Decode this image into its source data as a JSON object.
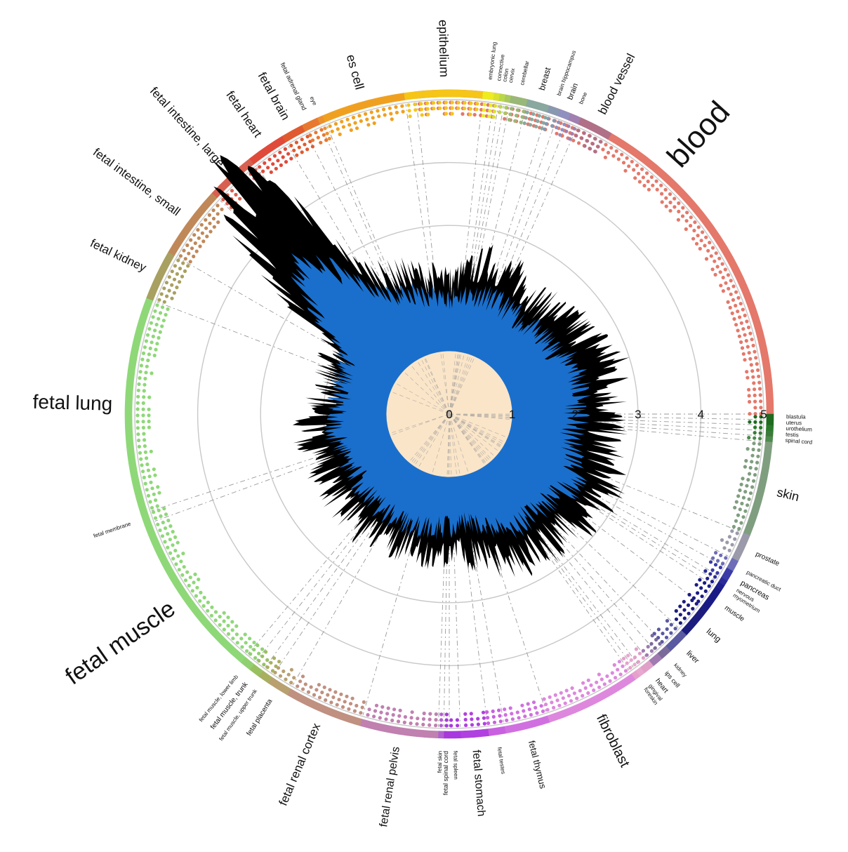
{
  "chart_data": {
    "type": "radial-area",
    "ticks": [
      "0",
      "1",
      "2",
      "3",
      "4",
      "5"
    ],
    "rlim": [
      0,
      5
    ],
    "grid": true,
    "legend": "none",
    "series_colors": {
      "outer": "#000000",
      "inner": "#1a6fcc",
      "core": "#fae5c8"
    },
    "core_value": 1.0,
    "profile_outer": [
      [
        0,
        2.0
      ],
      [
        15,
        2.4
      ],
      [
        40,
        2.2
      ],
      [
        60,
        2.4
      ],
      [
        70,
        2.6
      ],
      [
        85,
        2.5
      ],
      [
        100,
        2.4
      ],
      [
        120,
        2.7
      ],
      [
        135,
        2.5
      ],
      [
        150,
        2.5
      ],
      [
        170,
        2.2
      ],
      [
        195,
        2.1
      ],
      [
        215,
        2.2
      ],
      [
        240,
        2.1
      ],
      [
        262,
        2.2
      ],
      [
        280,
        1.9
      ],
      [
        300,
        2.0
      ],
      [
        314,
        4.7
      ],
      [
        318,
        4.8
      ],
      [
        322,
        4.5
      ],
      [
        328,
        2.6
      ],
      [
        335,
        2.3
      ],
      [
        345,
        2.2
      ],
      [
        360,
        2.0
      ]
    ],
    "profile_inner": [
      [
        0,
        1.8
      ],
      [
        15,
        1.9
      ],
      [
        40,
        1.8
      ],
      [
        60,
        1.9
      ],
      [
        70,
        2.1
      ],
      [
        85,
        2.0
      ],
      [
        100,
        1.9
      ],
      [
        120,
        2.2
      ],
      [
        135,
        2.0
      ],
      [
        150,
        2.0
      ],
      [
        170,
        1.7
      ],
      [
        195,
        1.8
      ],
      [
        215,
        1.8
      ],
      [
        240,
        1.7
      ],
      [
        262,
        1.8
      ],
      [
        280,
        1.7
      ],
      [
        300,
        1.8
      ],
      [
        314,
        3.3
      ],
      [
        318,
        3.0
      ],
      [
        322,
        2.8
      ],
      [
        328,
        2.3
      ],
      [
        335,
        2.0
      ],
      [
        345,
        1.9
      ],
      [
        360,
        1.8
      ]
    ],
    "sectors": [
      {
        "label": "blood",
        "size": 44,
        "start": 354,
        "end": 90,
        "color": "#e4786a"
      },
      {
        "label": "blastula",
        "size": 8,
        "start": 90,
        "end": 91,
        "color": "#1f6b1f"
      },
      {
        "label": "uterus",
        "size": 8,
        "start": 91,
        "end": 92,
        "color": "#1f6b1f"
      },
      {
        "label": "urothelium",
        "size": 8,
        "start": 92,
        "end": 93,
        "color": "#2a7a2a"
      },
      {
        "label": "testis",
        "size": 8,
        "start": 93,
        "end": 94,
        "color": "#3b7a3b"
      },
      {
        "label": "spinal cord",
        "size": 8,
        "start": 94,
        "end": 95,
        "color": "#4d8a4d"
      },
      {
        "label": "skin",
        "size": 18,
        "start": 95,
        "end": 112,
        "color": "#7f9e7f"
      },
      {
        "label": "prostate",
        "size": 10,
        "start": 112,
        "end": 117,
        "color": "#9a9aaa"
      },
      {
        "label": "pancreatic duct",
        "size": 8,
        "start": 117,
        "end": 119,
        "color": "#6d6db8"
      },
      {
        "label": "pancreas",
        "size": 11,
        "start": 119,
        "end": 121,
        "color": "#3a3aa8"
      },
      {
        "label": "nervous",
        "size": 8,
        "start": 121,
        "end": 122,
        "color": "#2a2a98"
      },
      {
        "label": "myometrium",
        "size": 8,
        "start": 122,
        "end": 123,
        "color": "#1e1e8e"
      },
      {
        "label": "muscle",
        "size": 10,
        "start": 123,
        "end": 127,
        "color": "#1a1a86"
      },
      {
        "label": "lung",
        "size": 12,
        "start": 127,
        "end": 133,
        "color": "#1c1c7e"
      },
      {
        "label": "liver",
        "size": 11,
        "start": 133,
        "end": 137,
        "color": "#5a5aa0"
      },
      {
        "label": "kidney",
        "size": 8,
        "start": 137,
        "end": 139,
        "color": "#7a6a9a"
      },
      {
        "label": "ips cell",
        "size": 9,
        "start": 139,
        "end": 141,
        "color": "#a07ab0"
      },
      {
        "label": "heart",
        "size": 10,
        "start": 141,
        "end": 143,
        "color": "#e0a0c8"
      },
      {
        "label": "gingival",
        "size": 8,
        "start": 143,
        "end": 144,
        "color": "#e8a8d0"
      },
      {
        "label": "foreskin",
        "size": 8,
        "start": 144,
        "end": 145,
        "color": "#e6a0cc"
      },
      {
        "label": "fibroblast",
        "size": 20,
        "start": 145,
        "end": 162,
        "color": "#dd88dd"
      },
      {
        "label": "fetal thymus",
        "size": 13,
        "start": 162,
        "end": 170,
        "color": "#d070e0"
      },
      {
        "label": "fetal testes",
        "size": 8,
        "start": 170,
        "end": 173,
        "color": "#c860e0"
      },
      {
        "label": "fetal stomach",
        "size": 16,
        "start": 173,
        "end": 178,
        "color": "#b040e0"
      },
      {
        "label": "fetal spleen",
        "size": 8,
        "start": 178,
        "end": 180,
        "color": "#a838e0"
      },
      {
        "label": "fetal spinal cord",
        "size": 9,
        "start": 180,
        "end": 181,
        "color": "#a838d8"
      },
      {
        "label": "fetal skin",
        "size": 8,
        "start": 181,
        "end": 182,
        "color": "#b060d0"
      },
      {
        "label": "fetal renal pelvis",
        "size": 16,
        "start": 182,
        "end": 196,
        "color": "#c080b0"
      },
      {
        "label": "fetal renal cortex",
        "size": 17,
        "start": 196,
        "end": 210,
        "color": "#c09080"
      },
      {
        "label": "fetal placenta",
        "size": 10,
        "start": 210,
        "end": 214,
        "color": "#b8a070"
      },
      {
        "label": "fetal muscle, upper trunk",
        "size": 8,
        "start": 214,
        "end": 216,
        "color": "#a8b060"
      },
      {
        "label": "fetal muscle, trunk",
        "size": 10,
        "start": 216,
        "end": 218,
        "color": "#98c060"
      },
      {
        "label": "fetal muscle, lower limb",
        "size": 8,
        "start": 218,
        "end": 220,
        "color": "#90d070"
      },
      {
        "label": "fetal muscle",
        "size": 34,
        "start": 220,
        "end": 250,
        "color": "#8ed878"
      },
      {
        "label": "fetal membrane",
        "size": 8,
        "start": 250,
        "end": 252,
        "color": "#8ed878"
      },
      {
        "label": "fetal lung",
        "size": 28,
        "start": 252,
        "end": 291,
        "color": "#8ed878"
      },
      {
        "label": "fetal kidney",
        "size": 17,
        "start": 291,
        "end": 300,
        "color": "#a8a060"
      },
      {
        "label": "fetal intestine, small",
        "size": 17,
        "start": 300,
        "end": 313,
        "color": "#c08858"
      },
      {
        "label": "fetal intestine, large",
        "size": 17,
        "start": 313,
        "end": 322,
        "color": "#d86050"
      },
      {
        "label": "fetal heart",
        "size": 17,
        "start": 322,
        "end": 329,
        "color": "#e04a3a"
      },
      {
        "label": "fetal brain",
        "size": 17,
        "start": 329,
        "end": 333,
        "color": "#e05a30"
      },
      {
        "label": "fetal adrenal gland",
        "size": 9,
        "start": 333,
        "end": 336,
        "color": "#e87830"
      },
      {
        "label": "eye",
        "size": 8,
        "start": 336,
        "end": 337,
        "color": "#ec9030"
      },
      {
        "label": "es cell",
        "size": 18,
        "start": 337,
        "end": 352,
        "color": "#f0a020"
      },
      {
        "label": "epithelium",
        "size": 18,
        "start": 352,
        "end": 6,
        "color": "#f5c518"
      },
      {
        "label": "embryonic lung",
        "size": 8,
        "start": 6,
        "end": 8,
        "color": "#ecec20"
      },
      {
        "label": "connective",
        "size": 8,
        "start": 8,
        "end": 9,
        "color": "#d8e030"
      },
      {
        "label": "colon",
        "size": 8,
        "start": 9,
        "end": 10,
        "color": "#b8d848"
      },
      {
        "label": "cervix",
        "size": 8,
        "start": 10,
        "end": 11,
        "color": "#a8c860"
      },
      {
        "label": "cerebellar",
        "size": 8,
        "start": 11,
        "end": 14,
        "color": "#98b878"
      },
      {
        "label": "breast",
        "size": 12,
        "start": 14,
        "end": 18,
        "color": "#88a8a0"
      },
      {
        "label": "brain hippocampus",
        "size": 8,
        "start": 18,
        "end": 20,
        "color": "#8898b0"
      },
      {
        "label": "brain",
        "size": 11,
        "start": 20,
        "end": 22,
        "color": "#9090c0"
      },
      {
        "label": "bone",
        "size": 8,
        "start": 22,
        "end": 24,
        "color": "#a080b0"
      },
      {
        "label": "blood vessel",
        "size": 17,
        "start": 24,
        "end": 30,
        "color": "#b07088"
      }
    ]
  }
}
